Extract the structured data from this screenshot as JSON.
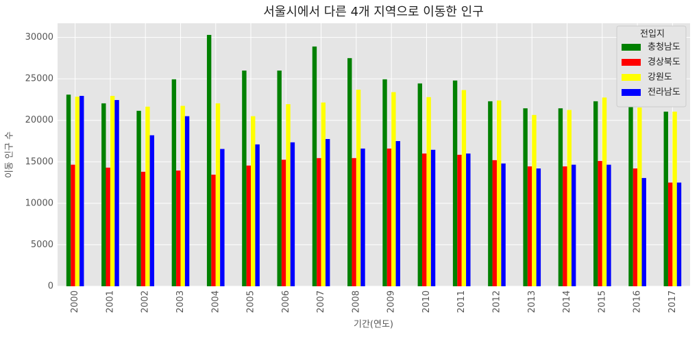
{
  "chart_data": {
    "type": "bar",
    "title": "서울시에서 다른 4개 지역으로 이동한 인구",
    "xlabel": "기간(연도)",
    "ylabel": "이동 인구 수",
    "categories": [
      "2000",
      "2001",
      "2002",
      "2003",
      "2004",
      "2005",
      "2006",
      "2007",
      "2008",
      "2009",
      "2010",
      "2011",
      "2012",
      "2013",
      "2014",
      "2015",
      "2016",
      "2017"
    ],
    "series": [
      {
        "name": "충청남도",
        "color": "#008000",
        "values": [
          23100,
          22050,
          21150,
          24950,
          30300,
          26000,
          26000,
          28900,
          27500,
          24950,
          24450,
          24800,
          22300,
          21450,
          21450,
          22300,
          21750,
          21050
        ]
      },
      {
        "name": "경상북도",
        "color": "#ff0000",
        "values": [
          14650,
          14300,
          13800,
          13950,
          13450,
          14550,
          15250,
          15450,
          15450,
          16600,
          16000,
          15850,
          15200,
          14450,
          14450,
          15100,
          14200,
          12500
        ]
      },
      {
        "name": "강원도",
        "color": "#ffff00",
        "values": [
          22850,
          22950,
          21650,
          21750,
          22050,
          20500,
          21950,
          22150,
          23700,
          23400,
          22800,
          23650,
          22400,
          20650,
          21250,
          22750,
          21550,
          21050
        ]
      },
      {
        "name": "전라남도",
        "color": "#0000ff",
        "values": [
          22950,
          22450,
          18200,
          20500,
          16550,
          17100,
          17350,
          17750,
          16600,
          17500,
          16450,
          16000,
          14800,
          14200,
          14650,
          14650,
          13050,
          12500
        ]
      }
    ],
    "ylim": [
      0,
      31700
    ],
    "yticks": [
      0,
      5000,
      10000,
      15000,
      20000,
      25000,
      30000
    ],
    "grid": true,
    "legend_title": "전입지",
    "legend": "upper right"
  }
}
